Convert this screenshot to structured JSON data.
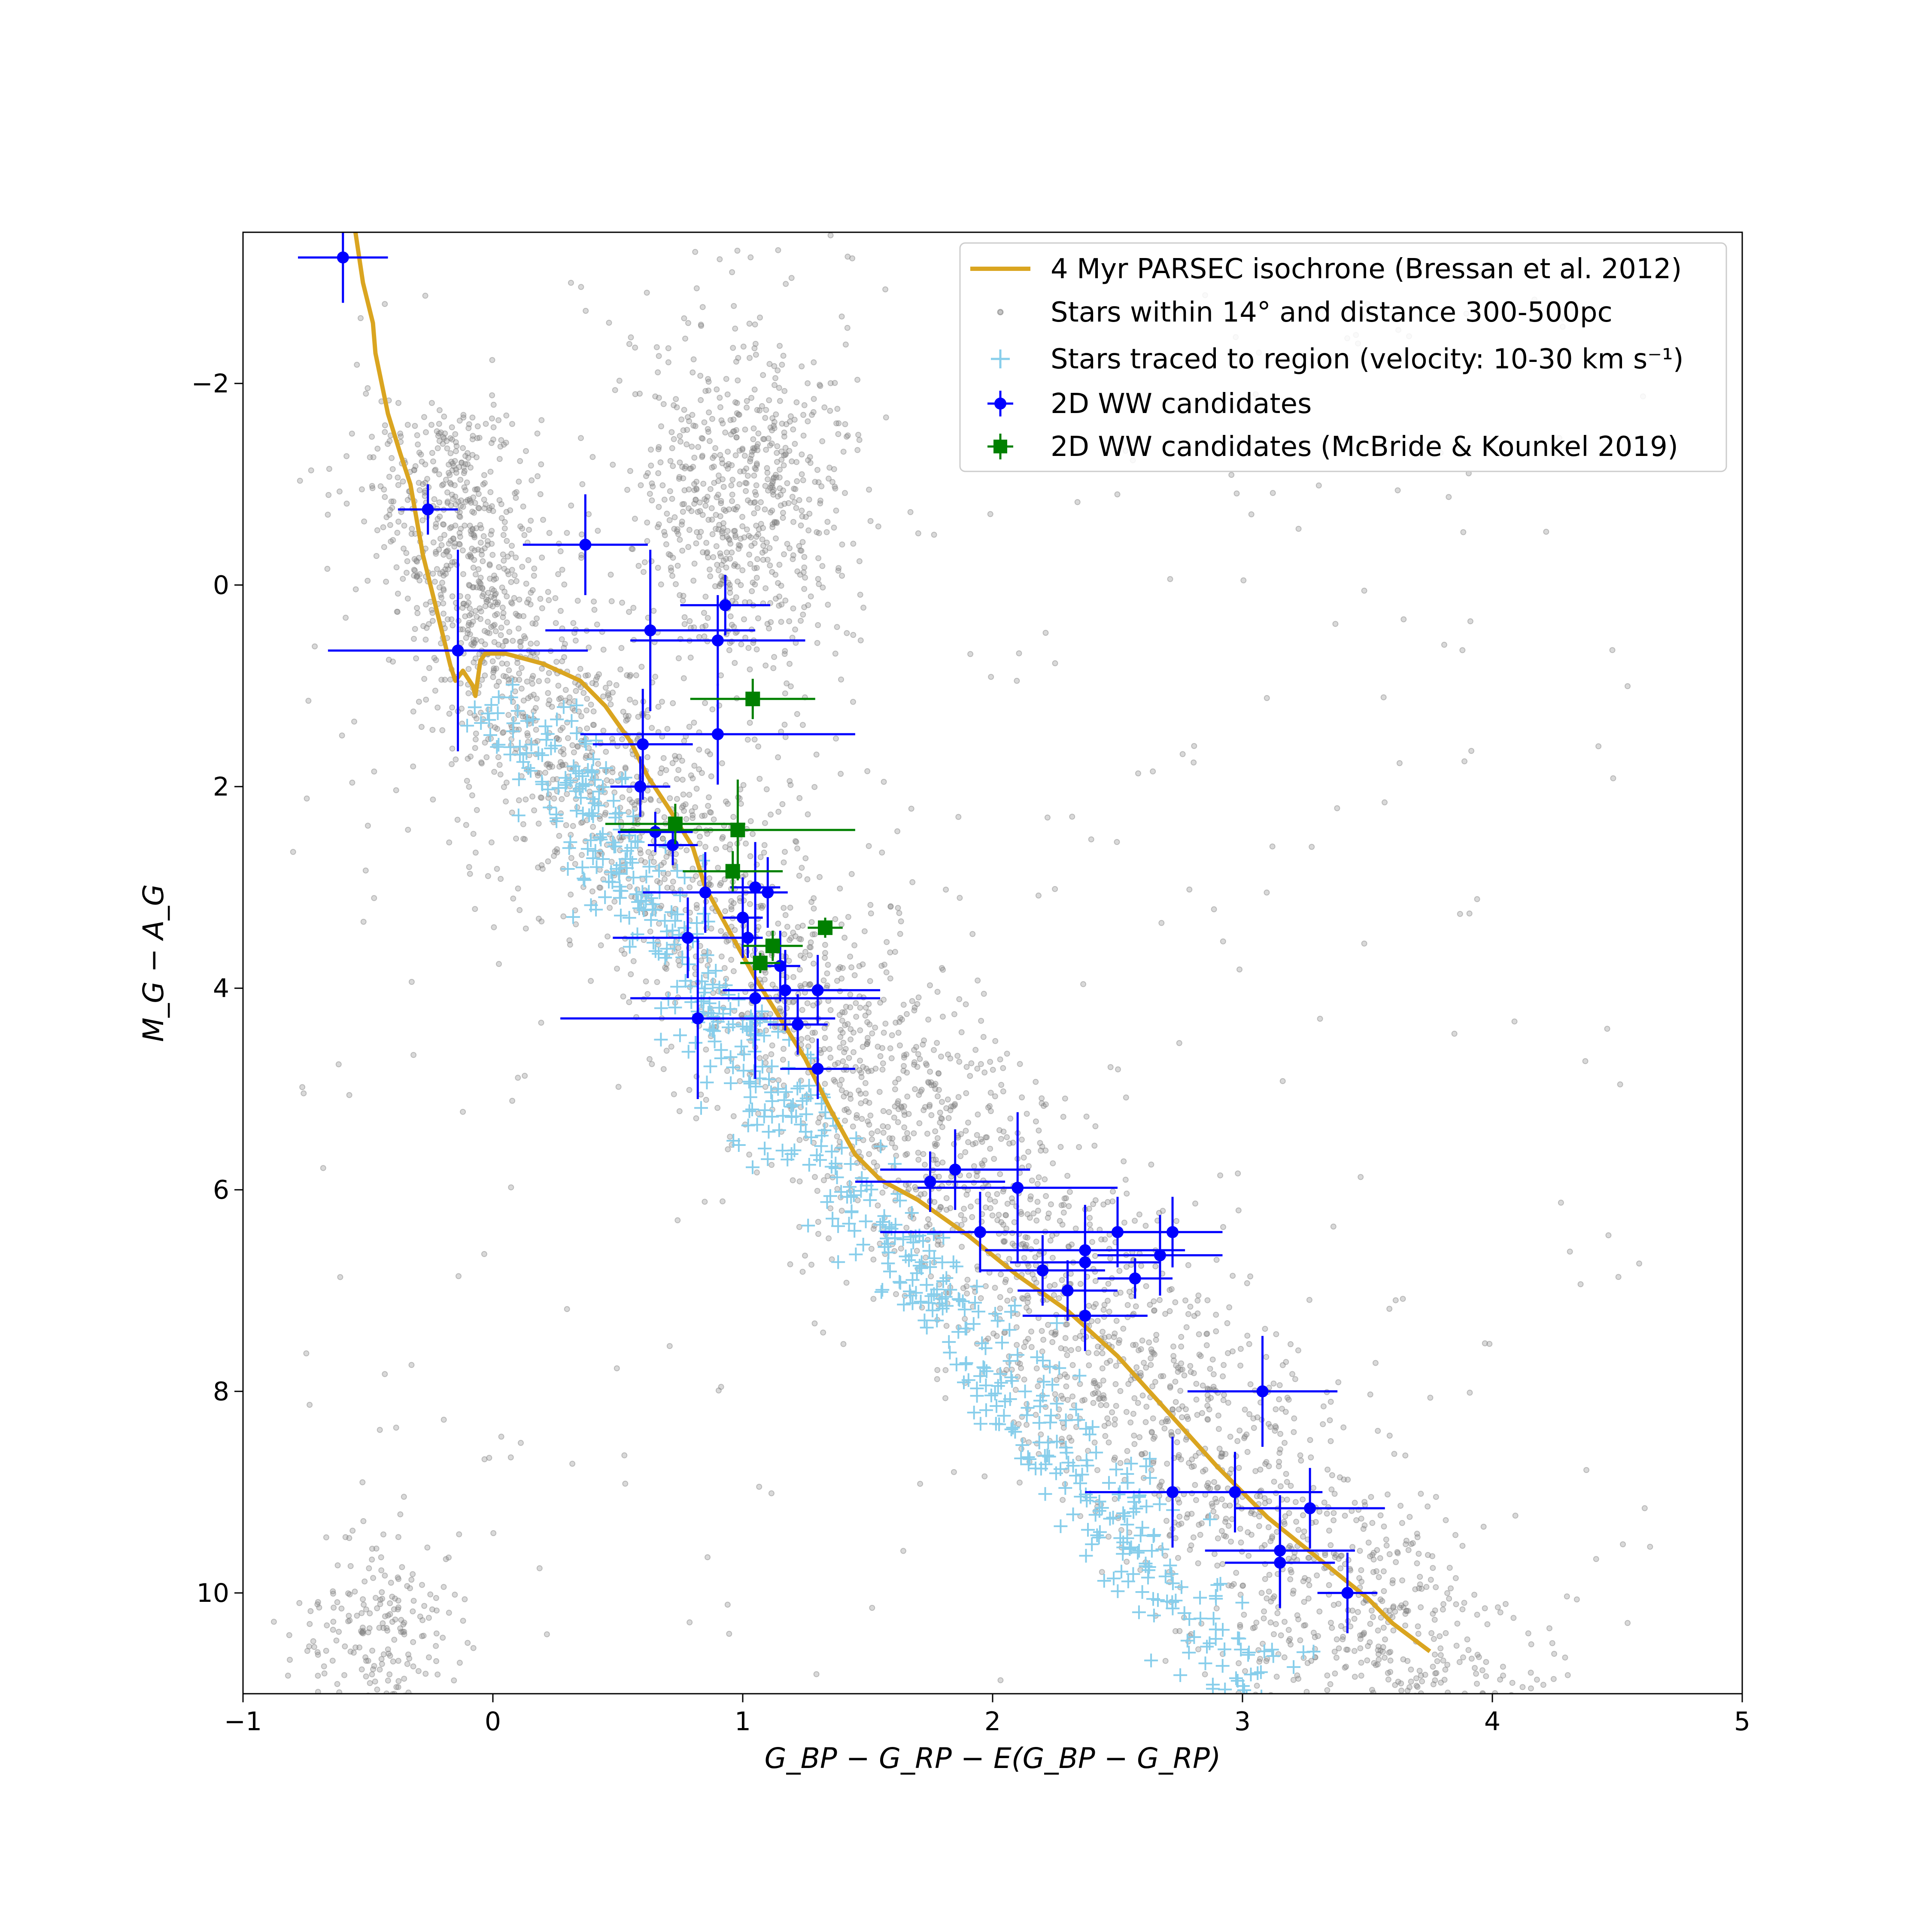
{
  "chart_data": {
    "type": "scatter",
    "title": "",
    "xlabel": "G_BP − G_RP − E(G_BP − G_RP)",
    "ylabel": "M_G − A_G",
    "xlim": [
      -1,
      5
    ],
    "ylim": [
      11,
      -3.5
    ],
    "y_inverted": true,
    "xticks": [
      -1,
      0,
      1,
      2,
      3,
      4,
      5
    ],
    "yticks": [
      -2,
      0,
      2,
      4,
      6,
      8,
      10
    ],
    "xtick_labels": [
      "−1",
      "0",
      "1",
      "2",
      "3",
      "4",
      "5"
    ],
    "ytick_labels": [
      "−2",
      "0",
      "2",
      "4",
      "6",
      "8",
      "10"
    ],
    "grid": false,
    "legend_placement": "top-right",
    "colors": {
      "isochrone": "#DAA520",
      "field_stars": "#808080",
      "traced_stars": "#87CEEB",
      "ww_candidates": "#0000FF",
      "mcbride": "#008000"
    },
    "legend": [
      {
        "label": "4 Myr PARSEC isochrone (Bressan et al. 2012)",
        "marker": "line",
        "color": "#DAA520"
      },
      {
        "label": "Stars within 14° and distance 300-500pc",
        "marker": "dot",
        "color": "#808080"
      },
      {
        "label": "Stars traced to region (velocity: 10-30 km s⁻¹)",
        "marker": "plus",
        "color": "#87CEEB"
      },
      {
        "label": "2D WW candidates",
        "marker": "errorbar-circle",
        "color": "#0000FF"
      },
      {
        "label": "2D WW candidates (McBride & Kounkel 2019)",
        "marker": "errorbar-square",
        "color": "#008000"
      }
    ],
    "series": [
      {
        "name": "4 Myr PARSEC isochrone (Bressan et al. 2012)",
        "type": "line",
        "points": [
          [
            -0.55,
            -3.5
          ],
          [
            -0.52,
            -3.0
          ],
          [
            -0.48,
            -2.6
          ],
          [
            -0.47,
            -2.3
          ],
          [
            -0.42,
            -1.7
          ],
          [
            -0.37,
            -1.3
          ],
          [
            -0.33,
            -1.0
          ],
          [
            -0.28,
            -0.3
          ],
          [
            -0.22,
            0.3
          ],
          [
            -0.17,
            0.8
          ],
          [
            -0.15,
            0.95
          ],
          [
            -0.12,
            0.85
          ],
          [
            -0.08,
            1.0
          ],
          [
            -0.07,
            1.1
          ],
          [
            -0.05,
            0.75
          ],
          [
            -0.03,
            0.68
          ],
          [
            0.05,
            0.68
          ],
          [
            0.2,
            0.78
          ],
          [
            0.35,
            0.95
          ],
          [
            0.45,
            1.2
          ],
          [
            0.55,
            1.55
          ],
          [
            0.62,
            1.9
          ],
          [
            0.7,
            2.2
          ],
          [
            0.8,
            2.6
          ],
          [
            0.85,
            3.0
          ],
          [
            0.95,
            3.45
          ],
          [
            1.05,
            3.9
          ],
          [
            1.15,
            4.3
          ],
          [
            1.25,
            4.7
          ],
          [
            1.35,
            5.2
          ],
          [
            1.45,
            5.65
          ],
          [
            1.55,
            5.9
          ],
          [
            1.7,
            6.1
          ],
          [
            1.9,
            6.45
          ],
          [
            2.1,
            6.85
          ],
          [
            2.3,
            7.2
          ],
          [
            2.5,
            7.65
          ],
          [
            2.7,
            8.2
          ],
          [
            2.9,
            8.75
          ],
          [
            3.1,
            9.25
          ],
          [
            3.3,
            9.65
          ],
          [
            3.5,
            10.05
          ],
          [
            3.6,
            10.3
          ],
          [
            3.75,
            10.58
          ]
        ]
      },
      {
        "name": "2D WW candidates",
        "type": "errorbar",
        "points": [
          [
            -0.6,
            -3.25,
            0.18,
            0.45
          ],
          [
            -0.26,
            -0.75,
            0.12,
            0.25
          ],
          [
            -0.14,
            0.65,
            0.52,
            1.0
          ],
          [
            0.37,
            -0.4,
            0.25,
            0.5
          ],
          [
            0.63,
            0.45,
            0.42,
            0.8
          ],
          [
            0.93,
            0.2,
            0.18,
            0.3
          ],
          [
            0.9,
            0.55,
            0.35,
            0.45
          ],
          [
            0.9,
            1.48,
            0.55,
            0.5
          ],
          [
            0.6,
            1.58,
            0.2,
            0.55
          ],
          [
            0.59,
            2.0,
            0.12,
            0.3
          ],
          [
            0.65,
            2.45,
            0.15,
            0.2
          ],
          [
            0.72,
            2.58,
            0.1,
            0.2
          ],
          [
            0.85,
            3.05,
            0.25,
            0.4
          ],
          [
            0.78,
            3.5,
            0.3,
            0.4
          ],
          [
            0.82,
            4.3,
            0.55,
            0.8
          ],
          [
            1.0,
            3.3,
            0.08,
            0.4
          ],
          [
            1.02,
            3.5,
            0.05,
            0.2
          ],
          [
            1.05,
            3.0,
            0.1,
            0.45
          ],
          [
            1.1,
            3.05,
            0.08,
            0.35
          ],
          [
            1.05,
            4.1,
            0.5,
            0.8
          ],
          [
            1.15,
            3.78,
            0.08,
            0.35
          ],
          [
            1.17,
            4.02,
            0.25,
            0.4
          ],
          [
            1.22,
            4.36,
            0.12,
            0.3
          ],
          [
            1.3,
            4.02,
            0.25,
            0.35
          ],
          [
            1.3,
            4.8,
            0.15,
            0.3
          ],
          [
            1.75,
            5.92,
            0.3,
            0.3
          ],
          [
            1.85,
            5.8,
            0.3,
            0.4
          ],
          [
            1.95,
            6.42,
            0.4,
            0.4
          ],
          [
            2.1,
            5.98,
            0.4,
            0.75
          ],
          [
            2.2,
            6.8,
            0.25,
            0.35
          ],
          [
            2.3,
            7.0,
            0.2,
            0.3
          ],
          [
            2.37,
            6.6,
            0.4,
            0.45
          ],
          [
            2.37,
            6.72,
            0.3,
            0.4
          ],
          [
            2.37,
            7.25,
            0.25,
            0.35
          ],
          [
            2.5,
            6.42,
            0.25,
            0.35
          ],
          [
            2.57,
            6.88,
            0.15,
            0.2
          ],
          [
            2.67,
            6.65,
            0.25,
            0.4
          ],
          [
            2.72,
            6.42,
            0.2,
            0.35
          ],
          [
            2.72,
            9.0,
            0.35,
            0.55
          ],
          [
            2.97,
            9.0,
            0.35,
            0.4
          ],
          [
            3.08,
            8.0,
            0.3,
            0.55
          ],
          [
            3.15,
            9.58,
            0.3,
            0.55
          ],
          [
            3.15,
            9.7,
            0.22,
            0.45
          ],
          [
            3.27,
            9.16,
            0.3,
            0.4
          ],
          [
            3.42,
            10.0,
            0.12,
            0.4
          ]
        ]
      },
      {
        "name": "2D WW candidates (McBride & Kounkel 2019)",
        "type": "errorbar",
        "points": [
          [
            1.04,
            1.13,
            0.25,
            0.2
          ],
          [
            0.73,
            2.37,
            0.28,
            0.2
          ],
          [
            0.98,
            2.43,
            0.47,
            0.5
          ],
          [
            0.96,
            2.84,
            0.2,
            0.2
          ],
          [
            1.12,
            3.58,
            0.12,
            0.15
          ],
          [
            1.07,
            3.75,
            0.08,
            0.1
          ],
          [
            1.33,
            3.4,
            0.07,
            0.1
          ]
        ]
      }
    ],
    "density_model": {
      "field_main_sequence": "dense gray band from (-0.3, -1.5) to (3.9, 11), width ~0.6 mag",
      "red_giant_clump": "gray cloud near color 0.7-1.4, magnitude -2.5 to 1",
      "white_dwarfs": "gray cluster near color -0.6 to -0.2, magnitude 9.5-11",
      "traced_sequence": "sky-blue crosses along lower edge of main sequence from (0.1, 1.2) to (3.2, 11)"
    }
  }
}
